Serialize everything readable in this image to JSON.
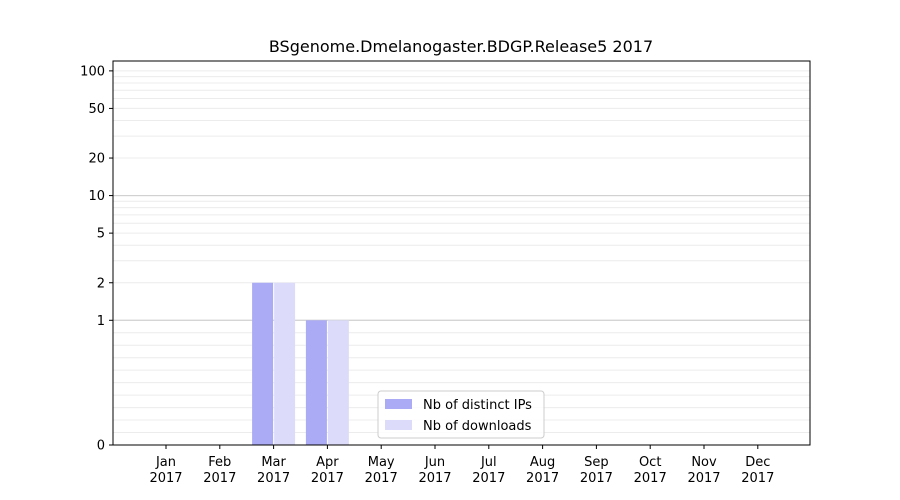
{
  "chart_data": {
    "type": "bar",
    "title": "BSgenome.Dmelanogaster.BDGP.Release5 2017",
    "xlabel": "",
    "ylabel": "",
    "yscale": "symlog",
    "ylim": [
      0,
      120
    ],
    "yticks": [
      0,
      1,
      2,
      5,
      10,
      20,
      50,
      100
    ],
    "ytick_labels": [
      "0",
      "1",
      "2",
      "5",
      "10",
      "20",
      "50",
      "100"
    ],
    "categories": [
      [
        "Jan",
        "2017"
      ],
      [
        "Feb",
        "2017"
      ],
      [
        "Mar",
        "2017"
      ],
      [
        "Apr",
        "2017"
      ],
      [
        "May",
        "2017"
      ],
      [
        "Jun",
        "2017"
      ],
      [
        "Jul",
        "2017"
      ],
      [
        "Aug",
        "2017"
      ],
      [
        "Sep",
        "2017"
      ],
      [
        "Oct",
        "2017"
      ],
      [
        "Nov",
        "2017"
      ],
      [
        "Dec",
        "2017"
      ]
    ],
    "series": [
      {
        "name": "Nb of distinct IPs",
        "color": "#aaaaf5",
        "values": [
          0,
          0,
          2,
          1,
          0,
          0,
          0,
          0,
          0,
          0,
          0,
          0
        ]
      },
      {
        "name": "Nb of downloads",
        "color": "#dcdcfa",
        "values": [
          0,
          0,
          2,
          1,
          0,
          0,
          0,
          0,
          0,
          0,
          0,
          0
        ]
      }
    ],
    "grid": true,
    "legend_position": "bottom-center"
  }
}
